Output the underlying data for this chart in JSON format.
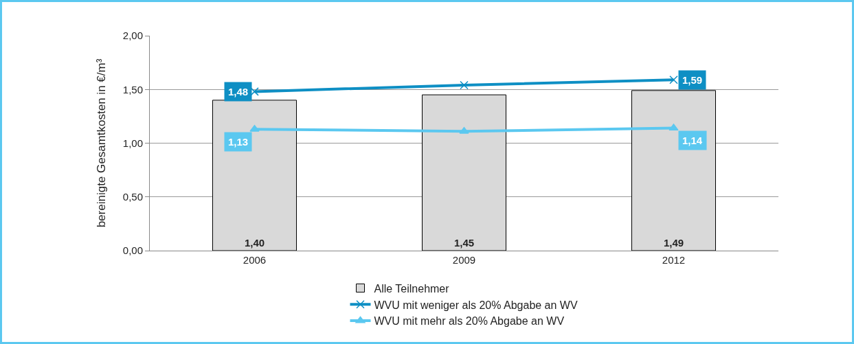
{
  "chart_data": {
    "type": "bar",
    "ylabel": "bereinigte Gesamtkosten in €/m³",
    "categories": [
      "2006",
      "2009",
      "2012"
    ],
    "series": [
      {
        "name": "Alle Teilnehmer",
        "color": "#d9d9d9",
        "values": [
          1.4,
          1.45,
          1.49
        ],
        "value_labels": [
          "1,40",
          "1,45",
          "1,49"
        ]
      },
      {
        "type": "line",
        "name": "WVU mit weniger als 20% Abgabe an WV",
        "color": "#0e8fc4",
        "marker": "cross",
        "values": [
          1.48,
          1.54,
          1.59
        ],
        "value_labels": [
          "1,48",
          null,
          "1,59"
        ]
      },
      {
        "type": "line",
        "name": "WVU mit mehr als 20% Abgabe an WV",
        "color": "#5bc8f0",
        "marker": "triangle",
        "values": [
          1.13,
          1.11,
          1.14
        ],
        "value_labels": [
          "1,13",
          null,
          "1,14"
        ]
      }
    ],
    "ylim": [
      0,
      2
    ],
    "yticks": [
      {
        "value": 0,
        "label": "0,00"
      },
      {
        "value": 0.5,
        "label": "0,50"
      },
      {
        "value": 1,
        "label": "1,00"
      },
      {
        "value": 1.5,
        "label": "1,50"
      },
      {
        "value": 2,
        "label": "2,00"
      }
    ],
    "grid": "y",
    "legend": "bottom"
  }
}
